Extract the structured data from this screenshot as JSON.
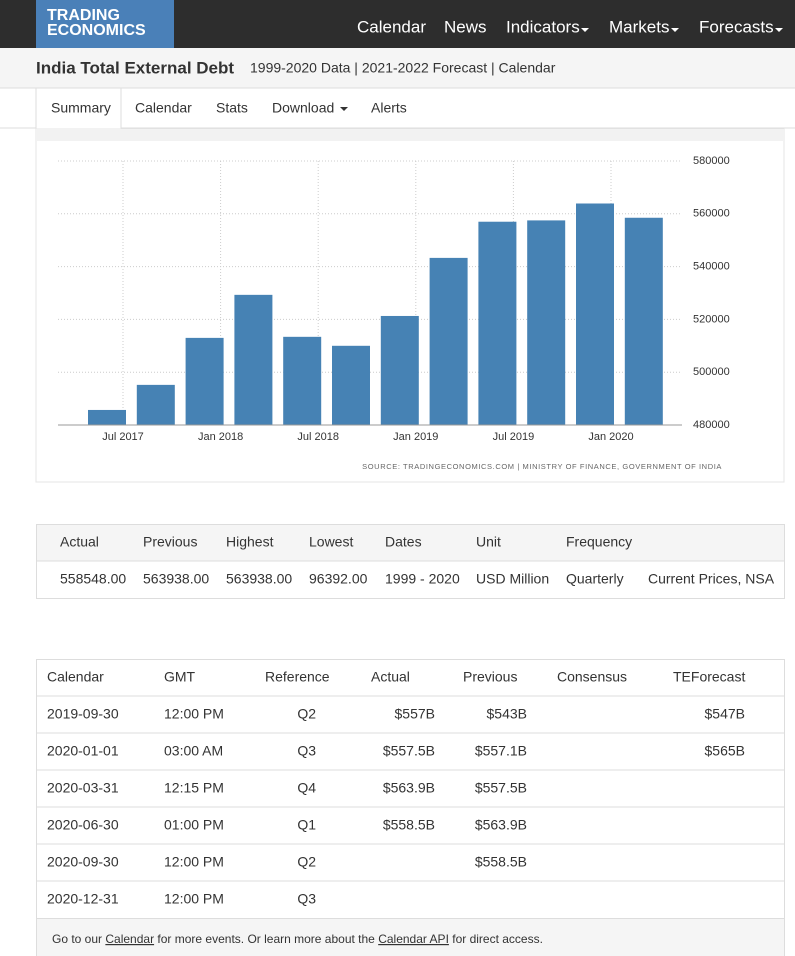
{
  "header": {
    "logo": [
      "TRADING",
      "ECONOMICS"
    ],
    "nav": [
      "Calendar",
      "News",
      "Indicators",
      "Markets",
      "Forecasts"
    ]
  },
  "title": "India Total External Debt",
  "subtitle": "1999-2020 Data | 2021-2022 Forecast | Calendar",
  "tabs": [
    "Summary",
    "Calendar",
    "Stats",
    "Download",
    "Alerts"
  ],
  "chart_data": {
    "type": "bar",
    "categories": [
      "Jul 2017",
      null,
      "Jan 2018",
      null,
      "Jul 2018",
      null,
      "Jan 2019",
      null,
      "Jul 2019",
      null,
      "Jan 2020",
      null
    ],
    "values": [
      485700,
      495200,
      513000,
      529300,
      513400,
      510000,
      521300,
      543300,
      557000,
      557500,
      563900,
      558500
    ],
    "color": "#4682b4",
    "ylim": [
      480000,
      580000
    ],
    "yticks": [
      480000,
      500000,
      520000,
      540000,
      560000,
      580000
    ],
    "grid": true,
    "source": "SOURCE: TRADINGECONOMICS.COM | MINISTRY OF FINANCE, GOVERNMENT OF INDIA"
  },
  "summary": {
    "headers": [
      "Actual",
      "Previous",
      "Highest",
      "Lowest",
      "Dates",
      "Unit",
      "Frequency"
    ],
    "row": [
      "558548.00",
      "563938.00",
      "563938.00",
      "96392.00",
      "1999 - 2020",
      "USD Million",
      "Quarterly",
      "Current Prices, NSA"
    ]
  },
  "calendar": {
    "headers": [
      "Calendar",
      "GMT",
      "Reference",
      "Actual",
      "Previous",
      "Consensus",
      "TEForecast"
    ],
    "rows": [
      [
        "2019-09-30",
        "12:00 PM",
        "Q2",
        "$557B",
        "$543B",
        null,
        "$547B"
      ],
      [
        "2020-01-01",
        "03:00 AM",
        "Q3",
        "$557.5B",
        "$557.1B",
        null,
        "$565B"
      ],
      [
        "2020-03-31",
        "12:15 PM",
        "Q4",
        "$563.9B",
        "$557.5B",
        null,
        null
      ],
      [
        "2020-06-30",
        "01:00 PM",
        "Q1",
        "$558.5B",
        "$563.9B",
        null,
        null
      ],
      [
        "2020-09-30",
        "12:00 PM",
        "Q2",
        null,
        "$558.5B",
        null,
        null
      ],
      [
        "2020-12-31",
        "12:00 PM",
        "Q3",
        null,
        null,
        null,
        null
      ]
    ],
    "footer": [
      "Go to our ",
      "Calendar",
      " for more events. Or learn more about the ",
      "Calendar API",
      " for direct access."
    ]
  }
}
